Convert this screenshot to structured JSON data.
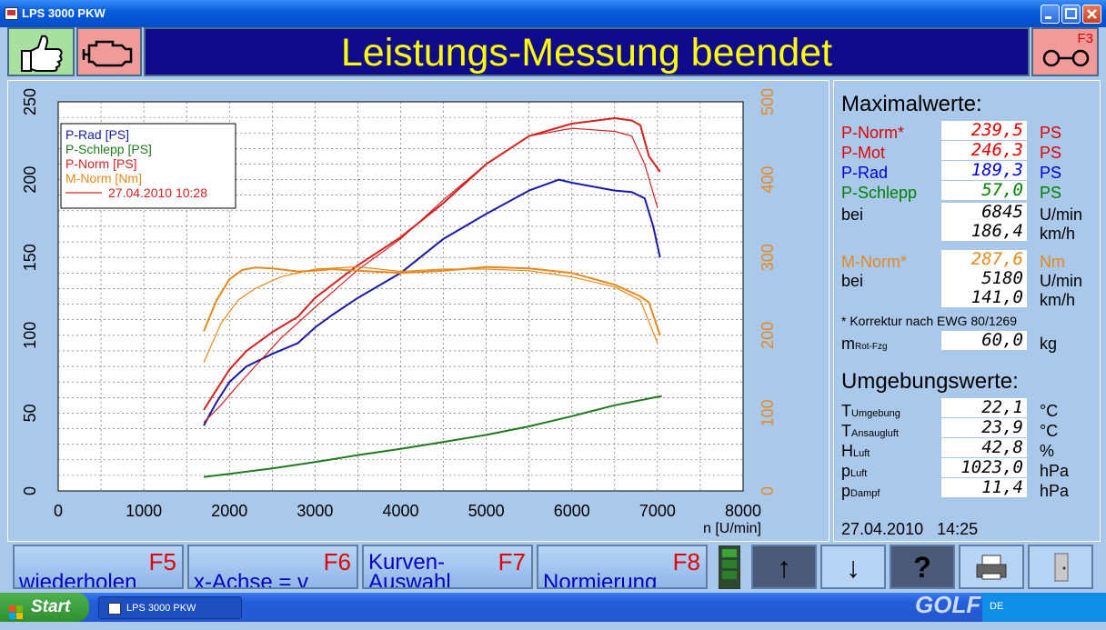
{
  "window": {
    "title": "LPS 3000 PKW"
  },
  "banner": {
    "text": "Leistungs-Messung beendet",
    "f3_label": "F3"
  },
  "chart_data": {
    "type": "line",
    "xlabel": "n [U/min]",
    "x_ticks": [
      "0",
      "1000",
      "2000",
      "3000",
      "4000",
      "5000",
      "6000",
      "7000",
      "8000"
    ],
    "y_left_ticks": [
      "0",
      "50",
      "100",
      "150",
      "200",
      "250"
    ],
    "y_right_ticks": [
      "0",
      "100",
      "200",
      "300",
      "400",
      "500"
    ],
    "xlim": [
      0,
      8000
    ],
    "ylim_left": [
      0,
      250
    ],
    "ylim_right": [
      0,
      500
    ],
    "grid": true,
    "legend_position": "top-left",
    "legend": [
      {
        "label": "P-Rad [PS]",
        "color": "#1a1aa8"
      },
      {
        "label": "P-Schlepp [PS]",
        "color": "#1f7a1f"
      },
      {
        "label": "P-Norm [PS]",
        "color": "#d42020"
      },
      {
        "label": "M-Norm [Nm]",
        "color": "#e8881a"
      },
      {
        "label": "27.04.2010 10:28",
        "color": "#d42020"
      }
    ],
    "series": [
      {
        "name": "P-Rad [PS]",
        "color": "#1a1aa8",
        "axis": "left",
        "x": [
          1700,
          1850,
          2000,
          2200,
          2500,
          2800,
          3000,
          3200,
          3500,
          4000,
          4500,
          5000,
          5500,
          5850,
          6000,
          6500,
          6700,
          6850,
          6950,
          7030
        ],
        "y": [
          42,
          57,
          70,
          80,
          88,
          95,
          105,
          113,
          124,
          140,
          162,
          178,
          193,
          200,
          198,
          193,
          192,
          188,
          170,
          150
        ]
      },
      {
        "name": "P-Schlepp [PS]",
        "color": "#1f7a1f",
        "axis": "left",
        "x": [
          1700,
          2000,
          2500,
          3000,
          3500,
          4000,
          4500,
          5000,
          5500,
          6000,
          6500,
          7050
        ],
        "y": [
          9,
          11,
          14.5,
          18.5,
          23,
          27,
          31.5,
          36,
          41.5,
          48,
          55,
          61
        ]
      },
      {
        "name": "P-Norm [PS]",
        "color": "#d42020",
        "axis": "left",
        "x": [
          1700,
          1850,
          2000,
          2200,
          2500,
          2800,
          3000,
          3500,
          4000,
          4500,
          5000,
          5500,
          6000,
          6500,
          6700,
          6800,
          6900,
          7030
        ],
        "y": [
          52,
          65,
          78,
          90,
          102,
          112,
          124,
          145,
          163,
          185,
          210,
          228,
          236,
          239.5,
          238,
          235,
          215,
          205
        ]
      },
      {
        "name": "P-Norm 27.04.2010 10:28",
        "color": "#d42020",
        "axis": "left",
        "x": [
          1700,
          1900,
          2100,
          2300,
          2600,
          3000,
          3500,
          4000,
          4500,
          5000,
          5500,
          6000,
          6500,
          6700,
          6850,
          7000
        ],
        "y": [
          44,
          55,
          68,
          80,
          98,
          118,
          142,
          162,
          187,
          210,
          228,
          233,
          231,
          228,
          210,
          182
        ]
      },
      {
        "name": "M-Norm [Nm]",
        "color": "#e8881a",
        "axis": "right",
        "x": [
          1700,
          1850,
          2000,
          2150,
          2300,
          2500,
          2800,
          3000,
          3200,
          3500,
          4000,
          4500,
          5000,
          5200,
          5500,
          6000,
          6500,
          6800,
          6900,
          7030
        ],
        "y": [
          205,
          245,
          272,
          284,
          287,
          286,
          282,
          283,
          285,
          283,
          280,
          283,
          287.6,
          287,
          286,
          280,
          265,
          250,
          242,
          200
        ]
      },
      {
        "name": "M-Norm 27.04.2010 10:28",
        "color": "#e8881a",
        "axis": "right",
        "x": [
          1700,
          1900,
          2100,
          2300,
          2600,
          3000,
          3500,
          4000,
          4500,
          5000,
          5500,
          6000,
          6500,
          6800,
          7000
        ],
        "y": [
          165,
          215,
          245,
          260,
          275,
          285,
          288,
          282,
          285,
          285,
          283,
          275,
          262,
          245,
          190
        ]
      }
    ]
  },
  "values": {
    "max_title": "Maximalwerte:",
    "rows": [
      {
        "label": "P-Norm*",
        "value": "239,5",
        "unit": "PS",
        "color": "#e00000",
        "vcolor": "#e00000"
      },
      {
        "label": "P-Mot",
        "value": "246,3",
        "unit": "PS",
        "color": "#e00000",
        "vcolor": "#e00000"
      },
      {
        "label": "P-Rad",
        "value": "189,3",
        "unit": "PS",
        "color": "#0000d0",
        "vcolor": "#0000d0"
      },
      {
        "label": "P-Schlepp",
        "value": "57,0",
        "unit": "PS",
        "color": "#008000",
        "vcolor": "#008000"
      }
    ],
    "bei_label": "bei",
    "bei_rpm": "6845",
    "bei_rpm_unit": "U/min",
    "bei_kmh": "186,4",
    "bei_kmh_unit": "km/h",
    "mnorm_label": "M-Norm*",
    "mnorm_value": "287,6",
    "mnorm_unit": "Nm",
    "mnorm_color": "#e8881a",
    "bei2_label": "bei",
    "bei2_rpm": "5180",
    "bei2_rpm_unit": "U/min",
    "bei2_kmh": "141,0",
    "bei2_kmh_unit": "km/h",
    "footnote": "* Korrektur nach EWG 80/1269",
    "mass_main": "m",
    "mass_sub": "Rot-Fzg",
    "mass_value": "60,0",
    "mass_unit": "kg",
    "env_title": "Umgebungswerte:",
    "env": [
      {
        "main": "T",
        "sub": "Umgebung",
        "value": "22,1",
        "unit": "°C"
      },
      {
        "main": "T",
        "sub": "Ansaugluft",
        "value": "23,9",
        "unit": "°C"
      },
      {
        "main": "H",
        "sub": "Luft",
        "value": "42,8",
        "unit": "%"
      },
      {
        "main": "p",
        "sub": "Luft",
        "value": "1023,0",
        "unit": "hPa"
      },
      {
        "main": "p",
        "sub": "Dampf",
        "value": "11,4",
        "unit": "hPa"
      }
    ],
    "datetime": "27.04.2010   14:25"
  },
  "fkeys": [
    {
      "num": "F5",
      "line1": "",
      "line2": "wiederholen"
    },
    {
      "num": "F6",
      "line1": "",
      "line2": "x-Achse = v"
    },
    {
      "num": "F7",
      "line1": "Kurven-",
      "line2": "Auswahl"
    },
    {
      "num": "F8",
      "line1": "",
      "line2": "Normierung"
    }
  ],
  "nav": {
    "up": "↑",
    "down": "↓",
    "help": "?"
  },
  "taskbar": {
    "start": "Start",
    "task": "LPS 3000 PKW",
    "lang": "DE",
    "watermark": "GOLF"
  },
  "icons": [
    "thumbs-up-icon",
    "engine-icon",
    "key-icon",
    "printer-icon",
    "exit-door-icon"
  ]
}
